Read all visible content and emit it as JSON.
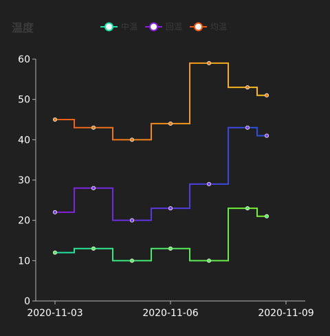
{
  "chart_data": {
    "type": "line",
    "step": "middle",
    "title": "温度",
    "x": [
      "2020-11-03",
      "2020-11-04",
      "2020-11-05",
      "2020-11-06",
      "2020-11-07",
      "2020-11-08",
      "2020-11-09"
    ],
    "x_ticks": [
      "2020-11-03",
      "2020-11-06",
      "2020-11-09"
    ],
    "y_ticks": [
      0,
      10,
      20,
      30,
      40,
      50,
      60
    ],
    "ylim": [
      0,
      60
    ],
    "legend_position": "top-center",
    "grid": false,
    "series": [
      {
        "name": "中温",
        "x": [
          "2020-11-03",
          "2020-11-04",
          "2020-11-05",
          "2020-11-06",
          "2020-11-07",
          "2020-11-08",
          "2020-11-08.5"
        ],
        "values": [
          12,
          13,
          10,
          13,
          10,
          23,
          21
        ],
        "color_start": "#1ae6a8",
        "color_end": "#7cf02a",
        "marker_color": "#55f055"
      },
      {
        "name": "回温",
        "x": [
          "2020-11-03",
          "2020-11-04",
          "2020-11-05",
          "2020-11-06",
          "2020-11-07",
          "2020-11-08",
          "2020-11-08.5"
        ],
        "values": [
          22,
          28,
          20,
          23,
          29,
          43,
          41
        ],
        "color_start": "#8a1ee0",
        "color_end": "#2a52e0",
        "marker_color": "#7a3cf0"
      },
      {
        "name": "均温",
        "x": [
          "2020-11-03",
          "2020-11-04",
          "2020-11-05",
          "2020-11-06",
          "2020-11-07",
          "2020-11-08",
          "2020-11-08.5"
        ],
        "values": [
          45,
          43,
          40,
          44,
          59,
          53,
          51
        ],
        "color_start": "#f05a14",
        "color_end": "#f8c020",
        "marker_color": "#f07a14"
      }
    ]
  },
  "colors": {
    "background": "#202020",
    "axis": "#b8b8b8",
    "tick_text": "#ffffff",
    "title_text": "#3c3c3c",
    "legend_text": "#3c3c3c"
  }
}
